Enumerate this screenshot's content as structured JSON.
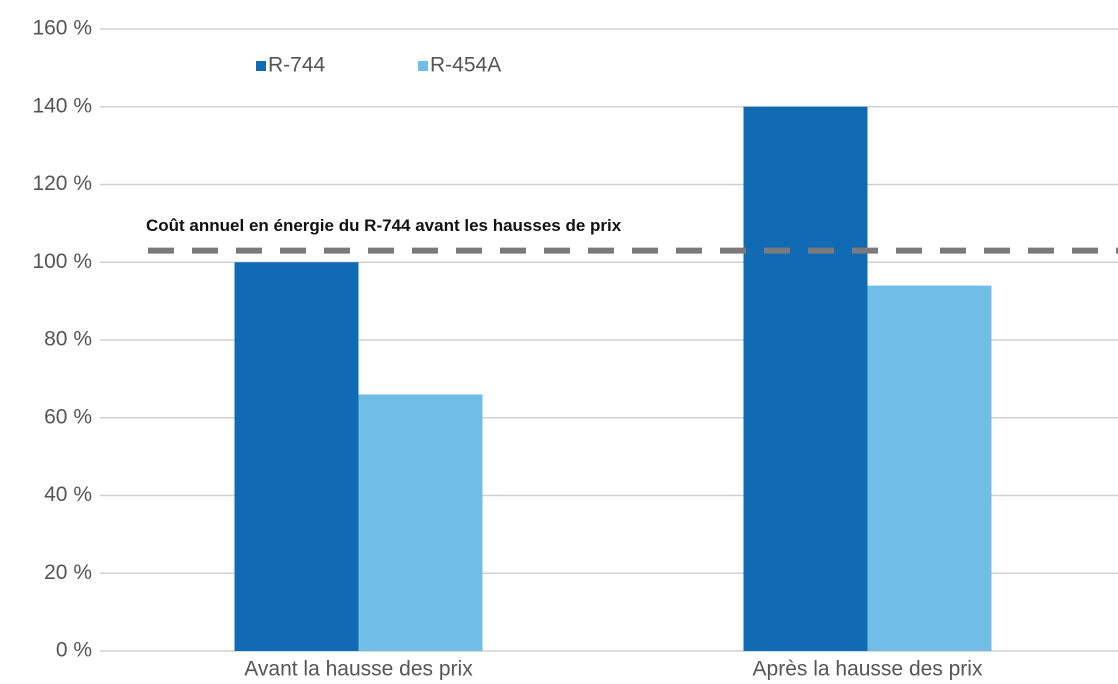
{
  "chart_data": {
    "type": "bar",
    "categories": [
      "Avant la hausse des prix",
      "Après la hausse des prix"
    ],
    "series": [
      {
        "name": "R-744",
        "color": "#106ab4",
        "values": [
          100,
          140
        ]
      },
      {
        "name": "R-454A",
        "color": "#70bde8",
        "values": [
          66,
          94
        ]
      }
    ],
    "ylim": [
      0,
      160
    ],
    "yticks": [
      {
        "value": 0,
        "label": "0 %"
      },
      {
        "value": 20,
        "label": "20 %"
      },
      {
        "value": 40,
        "label": "40 %"
      },
      {
        "value": 60,
        "label": "60 %"
      },
      {
        "value": 80,
        "label": "80 %"
      },
      {
        "value": 100,
        "label": "100 %"
      },
      {
        "value": 120,
        "label": "120 %"
      },
      {
        "value": 140,
        "label": "140 %"
      },
      {
        "value": 160,
        "label": "160 %"
      }
    ],
    "grid": true,
    "reference_line": {
      "value": 103,
      "label": "Coût annuel en énergie du R-744 avant les hausses de prix",
      "color": "#7a7a7a"
    }
  }
}
